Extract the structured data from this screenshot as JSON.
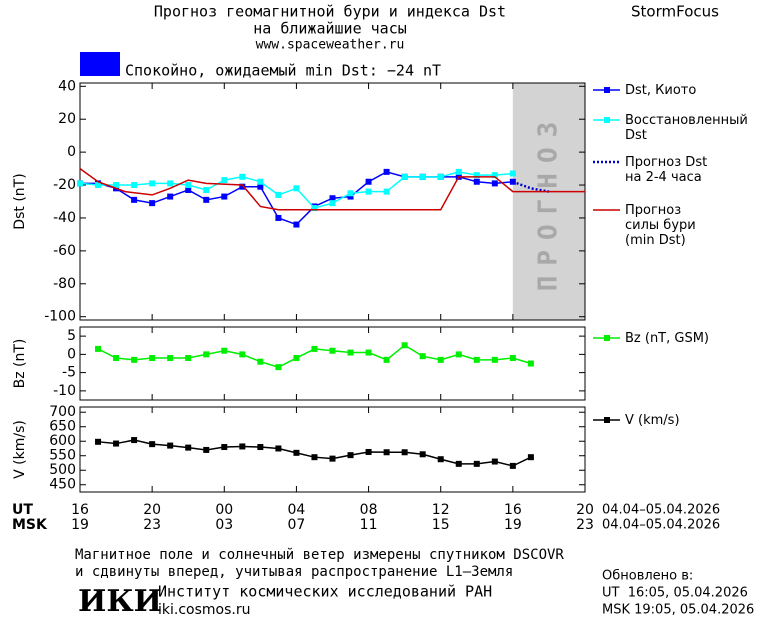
{
  "header": {
    "title_lines": [
      "Прогноз геомагнитной бури и индекса Dst",
      "на ближайшие часы"
    ],
    "url": "www.spaceweather.ru",
    "brand": "StormFocus"
  },
  "status": {
    "text": "Спокойно, ожидаемый min Dst: −24 nT",
    "color": "#0000ff"
  },
  "chart_data": [
    {
      "type": "line",
      "ylabel": "Dst (nT)",
      "xlim": [
        0,
        28
      ],
      "ylim": [
        -102,
        42
      ],
      "yticks": [
        40,
        20,
        0,
        -20,
        -40,
        -60,
        -80,
        -100
      ],
      "forecast_region": {
        "xlim": [
          24,
          28
        ],
        "label": "ПРОГНОЗ",
        "color": "#d3d3d3"
      },
      "series": [
        {
          "name": "Dst, Киото",
          "color": "#0000ff",
          "marker": "square",
          "x": [
            0,
            1,
            2,
            3,
            4,
            5,
            6,
            7,
            8,
            9,
            10,
            11,
            12,
            13,
            14,
            15,
            16,
            17,
            18,
            19,
            20,
            21,
            22,
            23,
            24
          ],
          "values": [
            -19,
            -19,
            -22,
            -29,
            -31,
            -27,
            -23,
            -29,
            -27,
            -21,
            -21,
            -40,
            -44,
            -33,
            -28,
            -27,
            -18,
            -12,
            -15,
            -15,
            -15,
            -15,
            -18,
            -19,
            -18
          ]
        },
        {
          "name": "Восстановленный\nDst",
          "color": "#00ffff",
          "marker": "square",
          "x": [
            0,
            1,
            2,
            3,
            4,
            5,
            6,
            7,
            8,
            9,
            10,
            11,
            12,
            13,
            14,
            15,
            16,
            17,
            18,
            19,
            20,
            21,
            22,
            23,
            24
          ],
          "values": [
            -19,
            -20,
            -20,
            -20,
            -19,
            -19,
            -20,
            -23,
            -17,
            -15,
            -18,
            -26,
            -22,
            -34,
            -31,
            -25,
            -24,
            -24,
            -15,
            -15,
            -15,
            -12,
            -14,
            -14,
            -13
          ]
        },
        {
          "name": "Прогноз Dst\nна 2-4 часа",
          "color": "#0000cc",
          "dash": "dotted",
          "x": [
            24,
            25,
            26
          ],
          "values": [
            -18,
            -22,
            -24
          ]
        },
        {
          "name": "Прогноз\nсилы бури\n(min Dst)",
          "color": "#cc0000",
          "x": [
            0,
            1,
            2.5,
            4,
            5,
            6,
            7,
            9,
            10,
            11,
            20,
            21,
            23,
            24,
            28
          ],
          "values": [
            -10,
            -18,
            -24,
            -26,
            -22,
            -17,
            -19,
            -20,
            -33,
            -35,
            -35,
            -15,
            -15,
            -24,
            -24
          ]
        }
      ]
    },
    {
      "type": "line",
      "ylabel": "Bz (nT)",
      "xlim": [
        0,
        28
      ],
      "ylim": [
        -12.5,
        7.5
      ],
      "yticks": [
        5,
        0,
        -5,
        -10
      ],
      "series": [
        {
          "name": "Bz (nT, GSM)",
          "color": "#00ee00",
          "marker": "square",
          "x": [
            1,
            2,
            3,
            4,
            5,
            6,
            7,
            8,
            9,
            10,
            11,
            12,
            13,
            14,
            15,
            16,
            17,
            18,
            19,
            20,
            21,
            22,
            23,
            24,
            25
          ],
          "values": [
            1.5,
            -1,
            -1.5,
            -1,
            -1,
            -1,
            0,
            1,
            0,
            -2,
            -3.5,
            -1,
            1.5,
            1,
            0.5,
            0.5,
            -1.5,
            2.5,
            -0.5,
            -1.5,
            0,
            -1.5,
            -1.5,
            -1,
            -2.5
          ]
        }
      ]
    },
    {
      "type": "line",
      "ylabel": "V (km/s)",
      "xlim": [
        0,
        28
      ],
      "ylim": [
        425,
        718
      ],
      "yticks": [
        700,
        650,
        600,
        550,
        500,
        450
      ],
      "xticks": [
        {
          "value": 0,
          "label": "16"
        },
        {
          "value": 4,
          "label": "20"
        },
        {
          "value": 8,
          "label": "00"
        },
        {
          "value": 12,
          "label": "04"
        },
        {
          "value": 16,
          "label": "08"
        },
        {
          "value": 20,
          "label": "12"
        },
        {
          "value": 24,
          "label": "16"
        },
        {
          "value": 28,
          "label": "20"
        }
      ],
      "xtick_labels_msk": [
        "19",
        "23",
        "03",
        "07",
        "11",
        "15",
        "19",
        "23"
      ],
      "xaxis_rows": [
        "UT",
        "MSK"
      ],
      "date_labels": [
        "04.04–05.04.2026",
        "04.04–05.04.2026"
      ],
      "series": [
        {
          "name": "V (km/s)",
          "color": "#000000",
          "marker": "square",
          "x": [
            1,
            2,
            3,
            4,
            5,
            6,
            7,
            8,
            9,
            10,
            11,
            12,
            13,
            14,
            15,
            16,
            17,
            18,
            19,
            20,
            21,
            22,
            23,
            24,
            25
          ],
          "values": [
            598,
            592,
            604,
            590,
            585,
            578,
            570,
            580,
            582,
            580,
            575,
            560,
            545,
            540,
            552,
            563,
            562,
            562,
            555,
            538,
            522,
            522,
            530,
            515,
            545
          ]
        }
      ]
    }
  ],
  "footer": {
    "note_lines": [
      "Магнитное поле и солнечный ветер измерены спутником DSCOVR",
      "и сдвинуты вперед, учитывая распространение L1–Земля"
    ],
    "logo": "ИКИ",
    "institute": "Институт космических исследований РАН",
    "site": "iki.cosmos.ru",
    "updated_label": "Обновлено в:",
    "updated_lines": [
      "UT  16:05, 05.04.2026",
      "MSK 19:05, 05.04.2026"
    ]
  }
}
